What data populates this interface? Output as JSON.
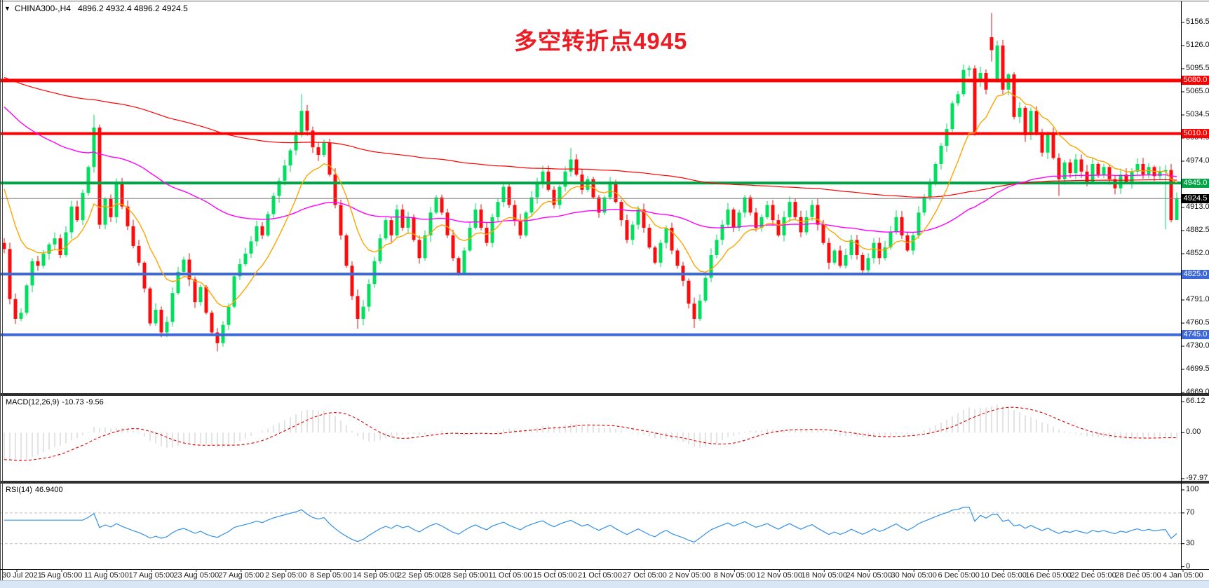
{
  "window": {
    "symbol": "CHINA300-,H4",
    "ohlc": "4896.2 4932.4 4896.2 4924.5"
  },
  "annotation": {
    "text": "多空转折点4945",
    "color": "#ec1c24"
  },
  "price_axis": {
    "ticks": [
      "5156.5",
      "5126.0",
      "5095.5",
      "5065.0",
      "5034.5",
      "5004.0",
      "4974.0",
      "4943.5",
      "4913.0",
      "4882.5",
      "4852.0",
      "4821.5",
      "4791.0",
      "4760.5",
      "4730.0",
      "4699.5",
      "4669.0"
    ],
    "levels": [
      {
        "label": "5080.0",
        "price": 5080.0,
        "color": "#fe0000",
        "thickness": 5
      },
      {
        "label": "5010.0",
        "price": 5010.0,
        "color": "#fe0000",
        "thickness": 4
      },
      {
        "label": "4945.0",
        "price": 4945.0,
        "color": "#00a445",
        "thickness": 4
      },
      {
        "label": "4825.0",
        "price": 4825.0,
        "color": "#3e68d8",
        "thickness": 4
      },
      {
        "label": "4745.0",
        "price": 4745.0,
        "color": "#3e68d8",
        "thickness": 4
      }
    ],
    "current": {
      "label": "4924.5",
      "price": 4924.5,
      "line_color": "#808080",
      "box_color": "#000000"
    }
  },
  "time_axis": {
    "labels": [
      "30 Jul 2021",
      "5 Aug 05:00",
      "11 Aug 05:00",
      "17 Aug 05:00",
      "23 Aug 05:00",
      "27 Aug 05:00",
      "2 Sep 05:00",
      "8 Sep 05:00",
      "14 Sep 05:00",
      "22 Sep 05:00",
      "28 Sep 05:00",
      "11 Oct 05:00",
      "15 Oct 05:00",
      "21 Oct 05:00",
      "27 Oct 05:00",
      "2 Nov 05:00",
      "8 Nov 05:00",
      "12 Nov 05:00",
      "18 Nov 05:00",
      "24 Nov 05:00",
      "30 Nov 05:00",
      "6 Dec 05:00",
      "10 Dec 05:00",
      "16 Dec 05:00",
      "22 Dec 05:00",
      "28 Dec 05:00",
      "4 Jan 05:00"
    ]
  },
  "macd": {
    "label": "MACD(12,26,9)",
    "values": "-10.73 -9.56",
    "ticks": [
      {
        "label": "66.12",
        "value": 66.12
      },
      {
        "label": "0.00",
        "value": 0
      },
      {
        "label": "-97.97",
        "value": -97.97
      }
    ],
    "hist_color": "#c9c9c9",
    "signal_color": "#e00000"
  },
  "rsi": {
    "label": "RSI(14)",
    "value": "46.9400",
    "ticks": [
      {
        "label": "100",
        "value": 100
      },
      {
        "label": "70",
        "value": 70
      },
      {
        "label": "30",
        "value": 30
      },
      {
        "label": "0",
        "value": 0
      }
    ],
    "levels": [
      70,
      30
    ],
    "line_color": "#3090e8"
  },
  "chart_data": {
    "type": "candlestick",
    "symbol": "CHINA300-",
    "timeframe": "H4",
    "title": "多空转折点4945",
    "y_axis_range": [
      4669.0,
      5156.5
    ],
    "macd_range": [
      -97.97,
      66.12
    ],
    "rsi_range": [
      0,
      100
    ],
    "up_color": "#00e05e",
    "down_color": "#fb0d0d",
    "last_bar": {
      "open": 4896.2,
      "high": 4932.4,
      "low": 4896.2,
      "close": 4924.5
    },
    "closes": [
      4858,
      4792,
      4766,
      4774,
      4810,
      4842,
      4836,
      4852,
      4864,
      4872,
      4850,
      4880,
      4914,
      4896,
      4932,
      4966,
      5018,
      4890,
      4924,
      4900,
      4944,
      4914,
      4888,
      4862,
      4840,
      4806,
      4760,
      4778,
      4748,
      4762,
      4800,
      4828,
      4844,
      4818,
      4788,
      4808,
      4774,
      4748,
      4734,
      4758,
      4782,
      4822,
      4838,
      4852,
      4868,
      4888,
      4876,
      4904,
      4928,
      4948,
      4968,
      4988,
      5008,
      5040,
      5014,
      4992,
      4982,
      4998,
      4956,
      4916,
      4876,
      4836,
      4796,
      4766,
      4782,
      4812,
      4842,
      4872,
      4896,
      4876,
      4910,
      4886,
      4900,
      4870,
      4846,
      4876,
      4906,
      4926,
      4906,
      4876,
      4846,
      4826,
      4856,
      4886,
      4910,
      4886,
      4866,
      4900,
      4920,
      4940,
      4916,
      4896,
      4876,
      4906,
      4926,
      4946,
      4960,
      4936,
      4916,
      4940,
      4960,
      4976,
      4956,
      4936,
      4950,
      4926,
      4906,
      4926,
      4946,
      4920,
      4896,
      4870,
      4890,
      4910,
      4886,
      4860,
      4840,
      4866,
      4886,
      4856,
      4836,
      4816,
      4786,
      4766,
      4790,
      4820,
      4850,
      4870,
      4890,
      4910,
      4886,
      4906,
      4926,
      4906,
      4886,
      4900,
      4916,
      4896,
      4876,
      4900,
      4920,
      4900,
      4880,
      4900,
      4916,
      4890,
      4866,
      4840,
      4856,
      4836,
      4850,
      4870,
      4850,
      4830,
      4846,
      4866,
      4846,
      4860,
      4880,
      4900,
      4876,
      4856,
      4876,
      4906,
      4926,
      4946,
      4970,
      4994,
      5016,
      5050,
      5062,
      5094,
      5096,
      5012,
      5090,
      5068,
      5120,
      5126,
      5068,
      5088,
      5032,
      5044,
      5008,
      5040,
      5012,
      4985,
      5010,
      4978,
      4950,
      4972,
      4958,
      4976,
      4960,
      4946,
      4970,
      4956,
      4966,
      4950,
      4938,
      4956,
      4946,
      4960,
      4970,
      4956,
      4966,
      4954,
      4960,
      4962,
      4896,
      4924.5
    ],
    "open_overrides": {
      "173": 5096,
      "174": 5078,
      "176": 5137,
      "177": 5080,
      "208": 4962,
      "209": 4896.2
    },
    "wick_overrides": {
      "16": {
        "high": 5035
      },
      "38": {
        "low": 4723
      },
      "53": {
        "high": 5062
      },
      "63": {
        "low": 4753
      },
      "101": {
        "high": 4991
      },
      "123": {
        "low": 4754
      },
      "171": {
        "high": 5101
      },
      "176": {
        "high": 5169,
        "low": 5105
      },
      "188": {
        "low": 4928
      },
      "207": {
        "low": 4884
      },
      "209": {
        "high": 4932.4,
        "low": 4896.2
      }
    },
    "moving_averages": [
      {
        "name": "slow-ma",
        "color": "#ff0000",
        "period": 220,
        "seed": 5086,
        "width": 1.2
      },
      {
        "name": "mid-ma",
        "color": "#ff00ff",
        "period": 75,
        "seed": 5050,
        "width": 1.4
      },
      {
        "name": "fast-ma",
        "color": "#ffa500",
        "period": 11,
        "seed": 4953,
        "width": 1.4
      }
    ]
  }
}
